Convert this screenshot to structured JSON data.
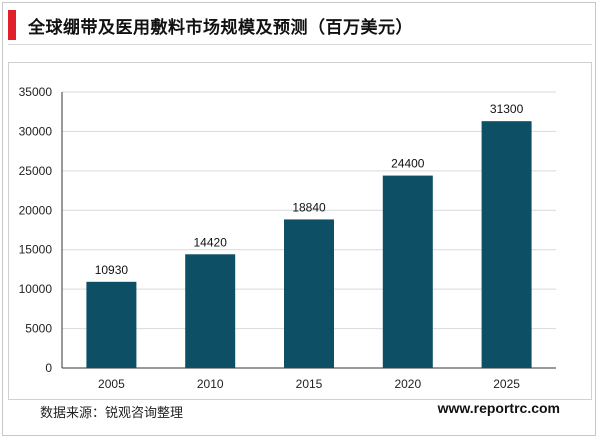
{
  "title": "全球绷带及医用敷料市场规模及预测（百万美元）",
  "colors": {
    "accent": "#e0202a",
    "bar": "#0d5066",
    "grid": "#d9d9d9",
    "axis": "#333333"
  },
  "footer": {
    "source": "数据来源：锐观咨询整理",
    "site": "www.reportrc.com"
  },
  "chart_data": {
    "type": "bar",
    "title": "全球绷带及医用敷料市场规模及预测（百万美元）",
    "xlabel": "",
    "ylabel": "",
    "categories": [
      "2005",
      "2010",
      "2015",
      "2020",
      "2025"
    ],
    "values": [
      10930,
      14420,
      18840,
      24400,
      31300
    ],
    "data_labels": [
      "10930",
      "14420",
      "18840",
      "24400",
      "31300"
    ],
    "ylim": [
      0,
      35000
    ],
    "yticks": [
      "0",
      "5000",
      "10000",
      "15000",
      "20000",
      "25000",
      "30000",
      "35000"
    ],
    "grid": true,
    "legend": "none"
  }
}
